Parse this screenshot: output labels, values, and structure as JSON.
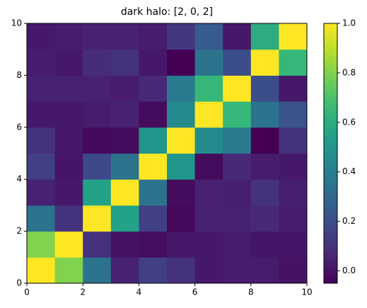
{
  "chart_data": {
    "type": "heatmap",
    "title": "dark halo: [2, 0, 2]",
    "colormap": "viridis",
    "xlim": [
      0,
      10
    ],
    "xticks": [
      0,
      2,
      4,
      6,
      8,
      10
    ],
    "ylim": [
      0,
      10
    ],
    "yticks": [
      0,
      2,
      4,
      6,
      8,
      10
    ],
    "clim": [
      -0.05,
      1.0
    ],
    "cticks": [
      {
        "value": 0,
        "label": "0.0"
      },
      0.2,
      0.4,
      0.6,
      0.8,
      {
        "value": 1,
        "label": "1.0"
      }
    ],
    "z": [
      [
        1.0,
        0.8,
        0.35,
        0.05,
        0.15,
        0.1,
        0.02,
        0.03,
        0.03,
        0.0
      ],
      [
        0.8,
        1.0,
        0.1,
        0.0,
        -0.01,
        0.02,
        0.02,
        0.03,
        0.01,
        0.01
      ],
      [
        0.35,
        0.1,
        1.0,
        0.55,
        0.15,
        -0.03,
        0.05,
        0.05,
        0.07,
        0.03
      ],
      [
        0.05,
        0.02,
        0.55,
        1.0,
        0.35,
        -0.02,
        0.05,
        0.04,
        0.1,
        0.04
      ],
      [
        0.15,
        0.01,
        0.18,
        0.35,
        1.0,
        0.5,
        -0.02,
        0.07,
        0.03,
        0.02
      ],
      [
        0.1,
        0.02,
        -0.03,
        -0.02,
        0.5,
        1.0,
        0.45,
        0.38,
        -0.05,
        0.1
      ],
      [
        0.02,
        0.02,
        0.03,
        0.05,
        -0.02,
        0.45,
        1.0,
        0.65,
        0.35,
        0.22
      ],
      [
        0.05,
        0.05,
        0.05,
        0.03,
        0.07,
        0.38,
        0.65,
        1.0,
        0.2,
        0.02
      ],
      [
        0.03,
        0.02,
        0.08,
        0.1,
        0.02,
        -0.05,
        0.35,
        0.2,
        1.0,
        0.65
      ],
      [
        0.02,
        0.03,
        0.05,
        0.05,
        0.03,
        0.12,
        0.25,
        0.02,
        0.6,
        1.0
      ]
    ]
  }
}
